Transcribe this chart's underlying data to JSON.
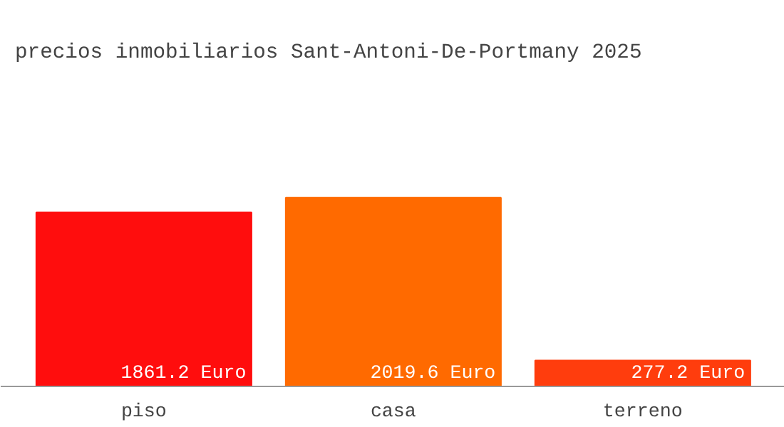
{
  "chart_data": {
    "type": "bar",
    "title": "precios inmobiliarios Sant-Antoni-De-Portmany 2025",
    "categories": [
      "piso",
      "casa",
      "terreno"
    ],
    "values": [
      1861.2,
      2019.6,
      277.2
    ],
    "colors": [
      "#ff0d0d",
      "#ff6a00",
      "#ff3d0d"
    ],
    "value_labels": [
      "1861.2 Euro",
      "2019.6 Euro",
      "277.2 Euro"
    ]
  }
}
